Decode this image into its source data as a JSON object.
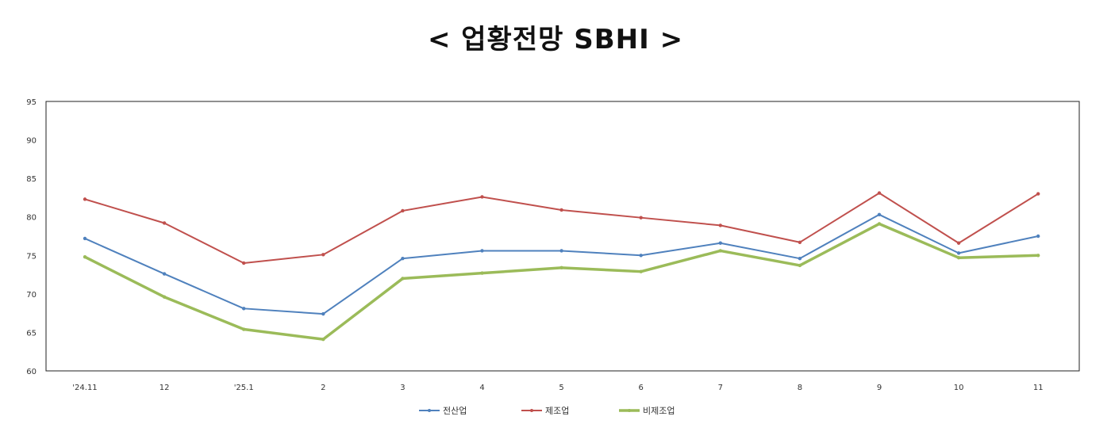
{
  "chart_data": {
    "type": "line",
    "title": "< 업황전망 SBHI >",
    "categories": [
      "'24.11",
      "12",
      "'25.1",
      "2",
      "3",
      "4",
      "5",
      "6",
      "7",
      "8",
      "9",
      "10",
      "11"
    ],
    "ylim": [
      60,
      95
    ],
    "yticks": [
      60,
      65,
      70,
      75,
      80,
      85,
      90,
      95
    ],
    "grid": false,
    "legend": "bottom",
    "series": [
      {
        "name": "전산업",
        "color": "#4F81BD",
        "width": 2,
        "values": [
          77.2,
          72.6,
          68.1,
          67.4,
          74.6,
          75.6,
          75.6,
          75.0,
          76.6,
          74.6,
          80.3,
          75.3,
          77.5
        ]
      },
      {
        "name": "제조업",
        "color": "#C0504D",
        "width": 2,
        "values": [
          82.3,
          79.2,
          74.0,
          75.1,
          80.8,
          82.6,
          80.9,
          79.9,
          78.9,
          76.7,
          83.1,
          76.6,
          83.0
        ]
      },
      {
        "name": "비제조업",
        "color": "#9BBB59",
        "width": 3.5,
        "values": [
          74.8,
          69.6,
          65.4,
          64.1,
          72.0,
          72.7,
          73.4,
          72.9,
          75.6,
          73.7,
          79.1,
          74.7,
          75.0
        ]
      }
    ]
  }
}
